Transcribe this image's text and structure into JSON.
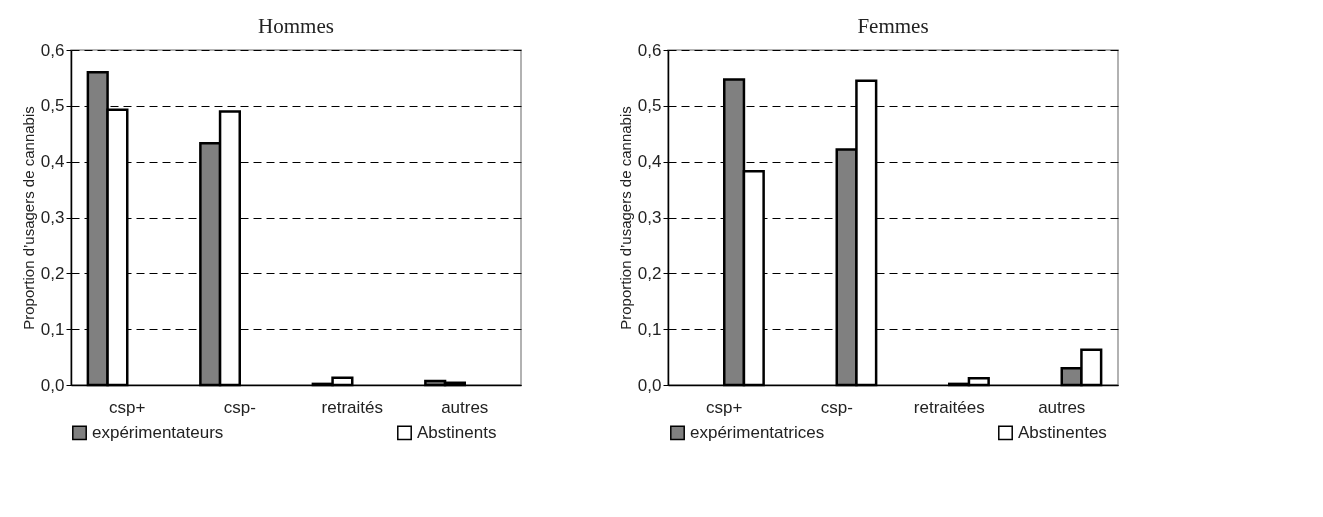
{
  "chart_data": [
    {
      "type": "bar",
      "title": "Hommes",
      "ylabel": "Proportion d’usagers de cannabis",
      "categories": [
        "csp+",
        "csp-",
        "retraités",
        "autres"
      ],
      "series": [
        {
          "name": "expérimentateurs",
          "color": "#808080",
          "values": [
            0.56,
            0.433,
            0.002,
            0.007
          ]
        },
        {
          "name": "Abstinents",
          "color": "#ffffff",
          "values": [
            0.493,
            0.49,
            0.013,
            0.004
          ]
        }
      ],
      "ylim": [
        0,
        0.6
      ],
      "yticks": [
        {
          "value": 0,
          "label": "0,0"
        },
        {
          "value": 0.1,
          "label": "0,1"
        },
        {
          "value": 0.2,
          "label": "0,2"
        },
        {
          "value": 0.3,
          "label": "0,3"
        },
        {
          "value": 0.4,
          "label": "0,4"
        },
        {
          "value": 0.5,
          "label": "0,5"
        },
        {
          "value": 0.6,
          "label": "0,6"
        }
      ],
      "grid": "y",
      "legend": "bottom"
    },
    {
      "type": "bar",
      "title": "Femmes",
      "ylabel": "Proportion d’usagers de cannabis",
      "categories": [
        "csp+",
        "csp-",
        "retraitées",
        "autres"
      ],
      "series": [
        {
          "name": "expérimentatrices",
          "color": "#808080",
          "values": [
            0.547,
            0.422,
            0.002,
            0.03
          ]
        },
        {
          "name": "Abstinentes",
          "color": "#ffffff",
          "values": [
            0.383,
            0.545,
            0.012,
            0.063
          ]
        }
      ],
      "ylim": [
        0,
        0.6
      ],
      "yticks": [
        {
          "value": 0,
          "label": "0,0"
        },
        {
          "value": 0.1,
          "label": "0,1"
        },
        {
          "value": 0.2,
          "label": "0,2"
        },
        {
          "value": 0.3,
          "label": "0,3"
        },
        {
          "value": 0.4,
          "label": "0,4"
        },
        {
          "value": 0.5,
          "label": "0,5"
        },
        {
          "value": 0.6,
          "label": "0,6"
        }
      ],
      "grid": "y",
      "legend": "bottom"
    }
  ]
}
